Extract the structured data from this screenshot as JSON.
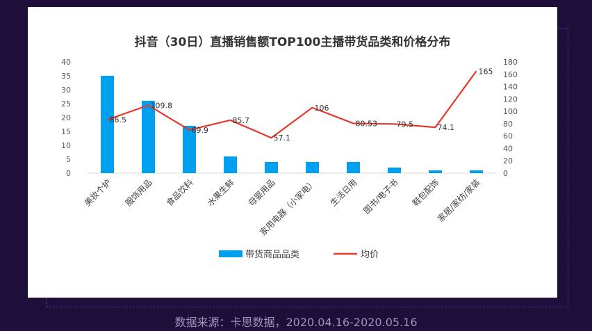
{
  "source": "数据来源：卡思数据，2020.04.16-2020.05.16",
  "chart_data": {
    "type": "bar+line",
    "title": "抖音（30日）直播销售额TOP100主播带货品类和价格分布",
    "categories": [
      "美妆个护",
      "服饰用品",
      "食品饮料",
      "水果生鲜",
      "母婴用品",
      "家用电器（小家电）",
      "生活日用",
      "图书/电子书",
      "鞋包配饰",
      "家居/家纺/家装"
    ],
    "series": [
      {
        "name": "带货商品品类",
        "type": "bar",
        "axis": "left",
        "values": [
          35,
          26,
          17,
          6,
          4,
          4,
          4,
          2,
          1,
          1
        ]
      },
      {
        "name": "均价",
        "type": "line",
        "axis": "right",
        "values": [
          86.5,
          109.8,
          69.9,
          85.7,
          57.1,
          106,
          80.53,
          79.5,
          74.1,
          165
        ],
        "labels": [
          "86.5",
          "109.8",
          "69.9",
          "85.7",
          "57.1",
          "106",
          "80.53",
          "79.5",
          "74.1",
          "165"
        ]
      }
    ],
    "y_left": {
      "min": 0,
      "max": 40,
      "ticks": [
        0,
        5,
        10,
        15,
        20,
        25,
        30,
        35,
        40
      ]
    },
    "y_right": {
      "min": 0,
      "max": 180,
      "ticks": [
        0,
        20,
        40,
        60,
        80,
        100,
        120,
        140,
        160,
        180
      ]
    },
    "grid": false,
    "legend_position": "bottom",
    "colors": {
      "bar": "#00a0f0",
      "line": "#e8372c"
    }
  }
}
